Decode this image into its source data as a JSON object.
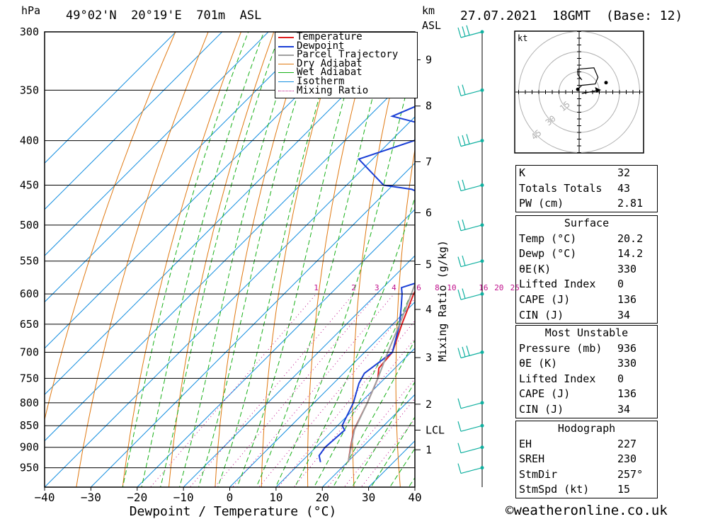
{
  "header": {
    "pressure_unit": "hPa",
    "location": "49°02'N  20°19'E  701m  ASL",
    "km_unit": "km",
    "km_unit2": "ASL",
    "datetime": "27.07.2021  18GMT  (Base: 12)"
  },
  "footer": {
    "xlabel": "Dewpoint / Temperature (°C)",
    "copyright": "©weatheronline.co.uk",
    "mixing_ratio_label": "Mixing Ratio (g/kg)"
  },
  "colors": {
    "temperature": "#e02020",
    "dewpoint": "#1a3fd6",
    "parcel": "#a0a0a0",
    "dry_adiabat": "#e07810",
    "wet_adiabat": "#18b018",
    "isotherm": "#1890e0",
    "mixing_ratio": "#c0108c",
    "wind": "#10b0a0"
  },
  "chart_data": {
    "type": "line",
    "title": "49°02'N 20°19'E 701m ASL",
    "xlabel": "Dewpoint / Temperature (°C)",
    "ylabel": "hPa",
    "xlim": [
      -40,
      40
    ],
    "ylim": [
      1000,
      300
    ],
    "pressure_ticks": [
      300,
      350,
      400,
      450,
      500,
      550,
      600,
      650,
      700,
      750,
      800,
      850,
      900,
      950
    ],
    "temp_ticks": [
      -40,
      -30,
      -20,
      -10,
      0,
      10,
      20,
      30,
      40
    ],
    "km_ticks": [
      {
        "label": "1",
        "p": 906
      },
      {
        "label": "2",
        "p": 803
      },
      {
        "label": "3",
        "p": 710
      },
      {
        "label": "4",
        "p": 625
      },
      {
        "label": "5",
        "p": 555
      },
      {
        "label": "6",
        "p": 484
      },
      {
        "label": "7",
        "p": 423
      },
      {
        "label": "8",
        "p": 365
      },
      {
        "label": "9",
        "p": 323
      },
      {
        "label": "LCL",
        "p": 860
      }
    ],
    "mixing_ratio_labels": [
      "1",
      "2",
      "3",
      "4",
      "6",
      "8",
      "10",
      "16",
      "20",
      "25"
    ],
    "mixing_ratio_values": [
      1,
      2,
      3,
      4,
      6,
      8,
      10,
      16,
      20,
      25
    ],
    "legend": [
      "Temperature",
      "Dewpoint",
      "Parcel Trajectory",
      "Dry Adiabat",
      "Wet Adiabat",
      "Isotherm",
      "Mixing Ratio"
    ],
    "series": [
      {
        "name": "Temperature",
        "points": [
          [
            936,
            20.2
          ],
          [
            900,
            17.5
          ],
          [
            860,
            14.5
          ],
          [
            800,
            11.5
          ],
          [
            750,
            8.5
          ],
          [
            730,
            6.5
          ],
          [
            700,
            6.0
          ],
          [
            650,
            2.0
          ],
          [
            600,
            -2.0
          ],
          [
            560,
            -4.5
          ],
          [
            500,
            -11.0
          ],
          [
            450,
            -16.5
          ],
          [
            400,
            -23.5
          ],
          [
            380,
            -26.0
          ],
          [
            370,
            -28.5
          ],
          [
            360,
            -30.0
          ],
          [
            350,
            -32.5
          ],
          [
            330,
            -36.0
          ],
          [
            310,
            -40.0
          ],
          [
            300,
            -41.5
          ]
        ]
      },
      {
        "name": "Dewpoint",
        "points": [
          [
            936,
            14.2
          ],
          [
            920,
            12.5
          ],
          [
            900,
            12.0
          ],
          [
            860,
            12.5
          ],
          [
            850,
            11.0
          ],
          [
            800,
            8.5
          ],
          [
            760,
            5.5
          ],
          [
            740,
            4.5
          ],
          [
            700,
            6.0
          ],
          [
            650,
            1.5
          ],
          [
            620,
            -2.0
          ],
          [
            600,
            -4.5
          ],
          [
            590,
            -6.0
          ],
          [
            580,
            -3.0
          ],
          [
            550,
            -6.5
          ],
          [
            500,
            -14.0
          ],
          [
            470,
            -16.0
          ],
          [
            455,
            -25.0
          ],
          [
            450,
            -32.0
          ],
          [
            420,
            -43.0
          ],
          [
            400,
            -35.0
          ],
          [
            385,
            -34.5
          ],
          [
            375,
            -45.0
          ],
          [
            365,
            -42.0
          ],
          [
            350,
            -38.0
          ],
          [
            310,
            -40.0
          ],
          [
            300,
            -40.5
          ]
        ]
      },
      {
        "name": "Parcel Trajectory",
        "points": [
          [
            936,
            20.2
          ],
          [
            860,
            14.6
          ],
          [
            800,
            11.5
          ],
          [
            750,
            8.5
          ],
          [
            700,
            5.0
          ],
          [
            650,
            1.5
          ],
          [
            600,
            -2.5
          ],
          [
            550,
            -7.0
          ],
          [
            500,
            -11.8
          ],
          [
            450,
            -17.0
          ],
          [
            400,
            -23.5
          ],
          [
            350,
            -31.5
          ],
          [
            300,
            -41.5
          ]
        ]
      }
    ],
    "winds": [
      {
        "p": 300,
        "barbs": 3
      },
      {
        "p": 350,
        "barbs": 2
      },
      {
        "p": 400,
        "barbs": 3
      },
      {
        "p": 450,
        "barbs": 2
      },
      {
        "p": 500,
        "barbs": 2
      },
      {
        "p": 550,
        "barbs": 2
      },
      {
        "p": 600,
        "barbs": 2
      },
      {
        "p": 700,
        "barbs": 3
      },
      {
        "p": 800,
        "barbs": 1
      },
      {
        "p": 850,
        "barbs": 1
      },
      {
        "p": 900,
        "barbs": 1
      },
      {
        "p": 950,
        "barbs": 1
      }
    ],
    "hodograph": {
      "unit": "kt",
      "ring_labels": [
        "15",
        "30",
        "45"
      ],
      "rings": [
        15,
        30,
        45
      ],
      "trace": [
        [
          -1,
          2
        ],
        [
          2,
          5
        ],
        [
          12,
          6
        ],
        [
          14,
          11
        ],
        [
          11,
          18
        ],
        [
          -1,
          17
        ],
        [
          -1,
          13
        ],
        [
          2,
          9
        ]
      ]
    }
  },
  "indices": {
    "rows": [
      {
        "k": "K",
        "v": "32"
      },
      {
        "k": "Totals Totals",
        "v": "43"
      },
      {
        "k": "PW (cm)",
        "v": "2.81"
      }
    ]
  },
  "surface": {
    "title": "Surface",
    "rows": [
      {
        "k": "Temp (°C)",
        "v": "20.2"
      },
      {
        "k": "Dewp (°C)",
        "v": "14.2"
      },
      {
        "k": "θE(K)",
        "v": "330"
      },
      {
        "k": "Lifted Index",
        "v": "0"
      },
      {
        "k": "CAPE (J)",
        "v": "136"
      },
      {
        "k": "CIN (J)",
        "v": "34"
      }
    ]
  },
  "unstable": {
    "title": "Most Unstable",
    "rows": [
      {
        "k": "Pressure (mb)",
        "v": "936"
      },
      {
        "k": "θE (K)",
        "v": "330"
      },
      {
        "k": "Lifted Index",
        "v": "0"
      },
      {
        "k": "CAPE (J)",
        "v": "136"
      },
      {
        "k": "CIN (J)",
        "v": "34"
      }
    ]
  },
  "hodo_table": {
    "title": "Hodograph",
    "rows": [
      {
        "k": "EH",
        "v": "227"
      },
      {
        "k": "SREH",
        "v": "230"
      },
      {
        "k": "StmDir",
        "v": "257°"
      },
      {
        "k": "StmSpd (kt)",
        "v": "15"
      }
    ]
  }
}
